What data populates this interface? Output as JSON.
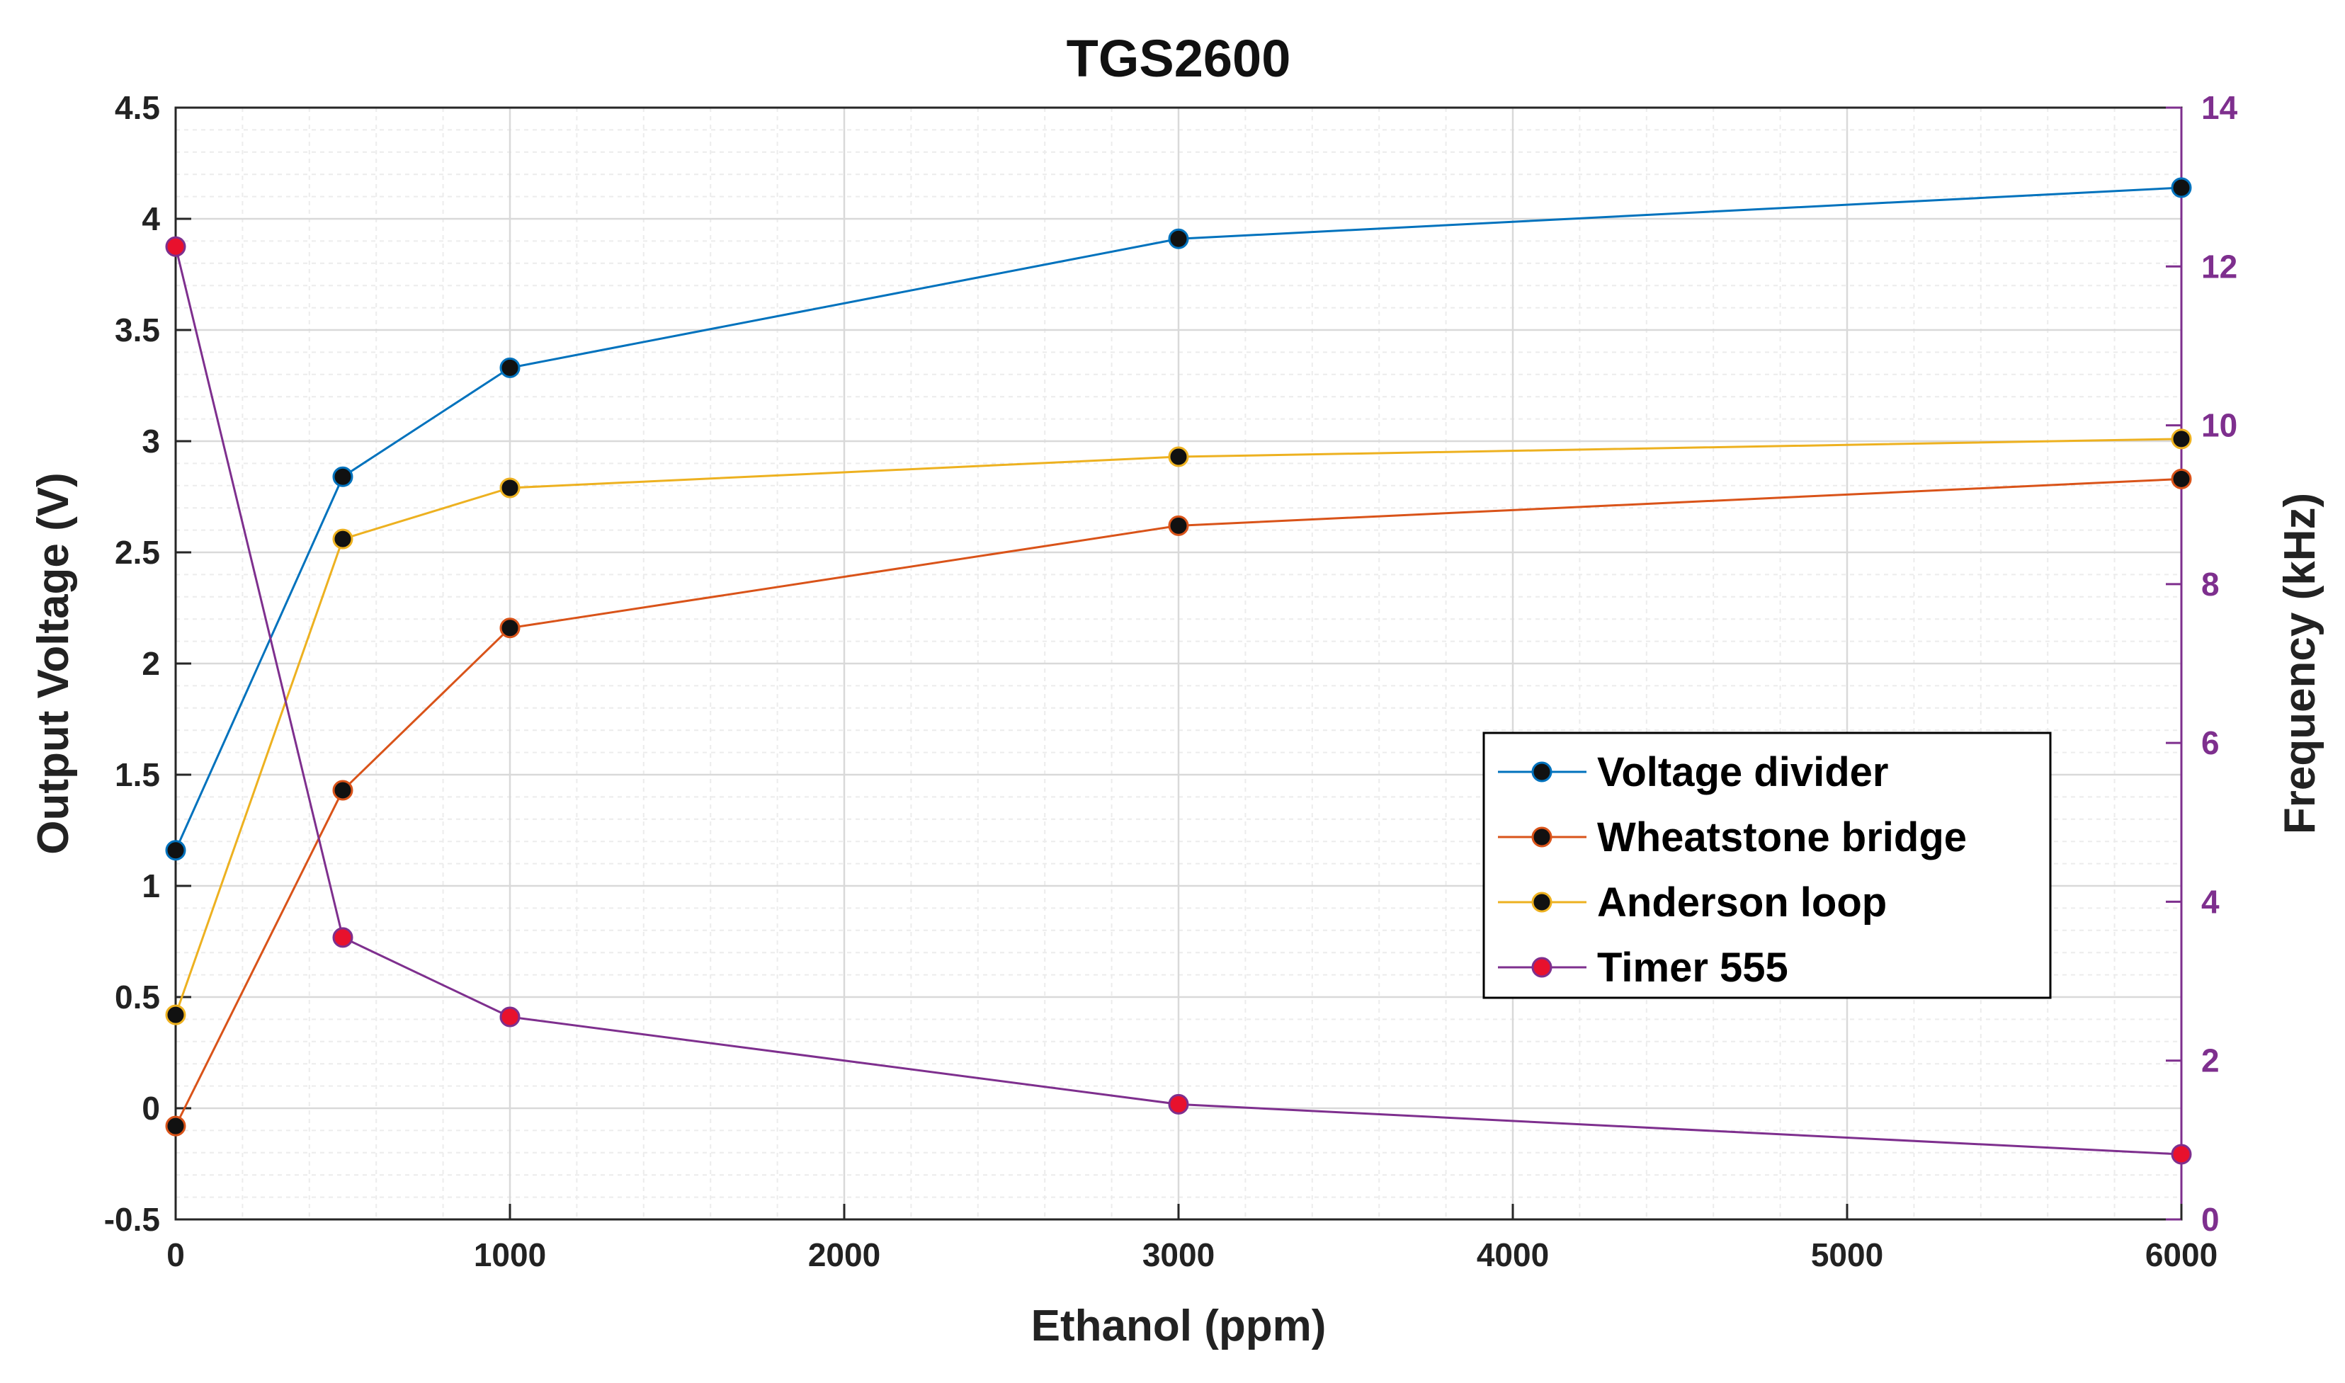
{
  "chart_data": {
    "type": "line",
    "title": "TGS2600",
    "xlabel": "Ethanol (ppm)",
    "ylabel": "Output Voltage (V)",
    "y2label": "Frequency (kHz)",
    "xlim": [
      0,
      6000
    ],
    "ylim": [
      -0.5,
      4.5
    ],
    "y2lim": [
      0,
      14
    ],
    "xticks": [
      0,
      1000,
      2000,
      3000,
      4000,
      5000,
      6000
    ],
    "yticks": [
      -0.5,
      0,
      0.5,
      1,
      1.5,
      2,
      2.5,
      3,
      3.5,
      4,
      4.5
    ],
    "yticklabels": [
      "-0.5",
      "0",
      "0.5",
      "1",
      "1.5",
      "2",
      "2.5",
      "3",
      "3.5",
      "4",
      "4.5"
    ],
    "y2ticks": [
      0,
      2,
      4,
      6,
      8,
      10,
      12,
      14
    ],
    "grid": true,
    "minor_grid": true,
    "legend_position": "center-right",
    "series": [
      {
        "name": "Voltage divider",
        "axis": "left",
        "color": "#0072BD",
        "marker_color": "#111111",
        "x": [
          0,
          500,
          1000,
          3000,
          6000
        ],
        "y": [
          1.16,
          2.84,
          3.33,
          3.91,
          4.14
        ]
      },
      {
        "name": "Wheatstone bridge",
        "axis": "left",
        "color": "#D95319",
        "marker_color": "#111111",
        "x": [
          0,
          500,
          1000,
          3000,
          6000
        ],
        "y": [
          -0.08,
          1.43,
          2.16,
          2.62,
          2.83
        ]
      },
      {
        "name": "Anderson loop",
        "axis": "left",
        "color": "#EDB120",
        "marker_color": "#111111",
        "x": [
          0,
          500,
          1000,
          3000,
          6000
        ],
        "y": [
          0.42,
          2.56,
          2.79,
          2.93,
          3.01
        ]
      },
      {
        "name": "Timer 555",
        "axis": "right",
        "color": "#7E2F8E",
        "marker_color": "#E8112D",
        "x": [
          0,
          500,
          1000,
          3000,
          6000
        ],
        "y": [
          12.25,
          3.55,
          2.55,
          1.45,
          0.82
        ]
      }
    ],
    "colors": {
      "right_axis": "#7E2F8E",
      "grid_major": "#d9d9d9",
      "grid_minor": "#ececec",
      "axis": "#262626"
    }
  }
}
